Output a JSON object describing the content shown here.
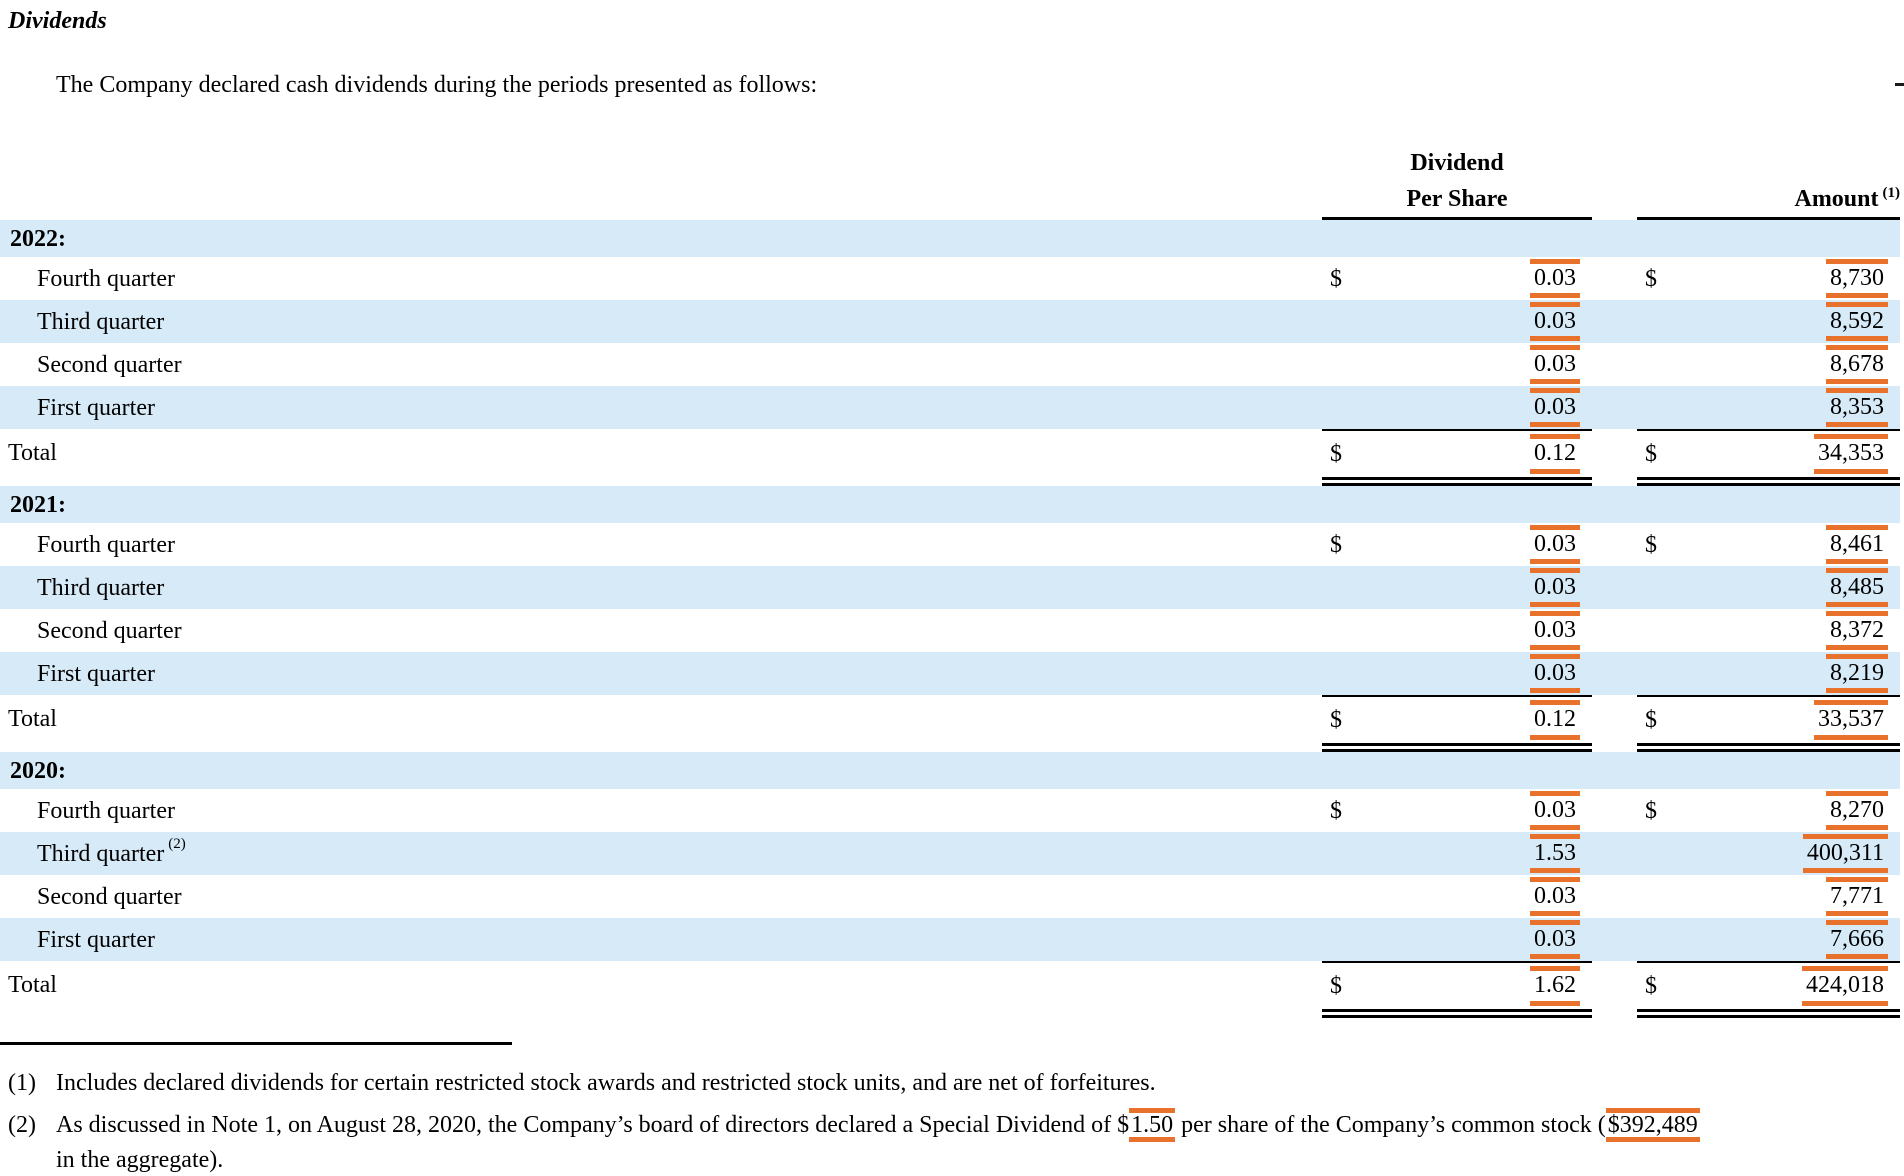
{
  "title": "Dividends",
  "intro": "The Company declared cash dividends during the periods presented as follows:",
  "colors": {
    "band_blue": "#D6EAF8",
    "highlight_orange": "#E8722C",
    "border_black": "#000000"
  },
  "table": {
    "header": {
      "per_share_line1": "Dividend",
      "per_share_line2": "Per Share",
      "amount_label": "Amount",
      "amount_superscript": "(1)"
    },
    "sections": [
      {
        "year": "2022:",
        "rows": [
          {
            "label": "Fourth quarter",
            "dollar": "$",
            "per_share": "0.03",
            "amount": "8,730"
          },
          {
            "label": "Third quarter",
            "per_share": "0.03",
            "amount": "8,592"
          },
          {
            "label": "Second quarter",
            "per_share": "0.03",
            "amount": "8,678"
          },
          {
            "label": "First quarter",
            "per_share": "0.03",
            "amount": "8,353"
          }
        ],
        "total": {
          "label": "Total",
          "dollar": "$",
          "per_share": "0.12",
          "amount": "34,353"
        }
      },
      {
        "year": "2021:",
        "rows": [
          {
            "label": "Fourth quarter",
            "dollar": "$",
            "per_share": "0.03",
            "amount": "8,461"
          },
          {
            "label": "Third quarter",
            "per_share": "0.03",
            "amount": "8,485"
          },
          {
            "label": "Second quarter",
            "per_share": "0.03",
            "amount": "8,372"
          },
          {
            "label": "First quarter",
            "per_share": "0.03",
            "amount": "8,219"
          }
        ],
        "total": {
          "label": "Total",
          "dollar": "$",
          "per_share": "0.12",
          "amount": "33,537"
        }
      },
      {
        "year": "2020:",
        "rows": [
          {
            "label": "Fourth quarter",
            "dollar": "$",
            "per_share": "0.03",
            "amount": "8,270"
          },
          {
            "label": "Third quarter",
            "sup": "(2)",
            "per_share": "1.53",
            "amount": "400,311"
          },
          {
            "label": "Second quarter",
            "per_share": "0.03",
            "amount": "7,771"
          },
          {
            "label": "First quarter",
            "per_share": "0.03",
            "amount": "7,666"
          }
        ],
        "total": {
          "label": "Total",
          "dollar": "$",
          "per_share": "1.62",
          "amount": "424,018"
        }
      }
    ]
  },
  "footnotes": {
    "f1": {
      "marker": "(1)",
      "text": "Includes declared dividends for certain restricted stock awards and restricted stock units, and are net of forfeitures."
    },
    "f2": {
      "marker": "(2)",
      "before": "As discussed in Note 1, on August 28, 2020, the Company’s board of directors declared a Special Dividend of $",
      "hl1": "1.50",
      "middle": " per share of the Company’s common stock (",
      "hl2": "$392,489",
      "after": "in the aggregate)."
    }
  }
}
